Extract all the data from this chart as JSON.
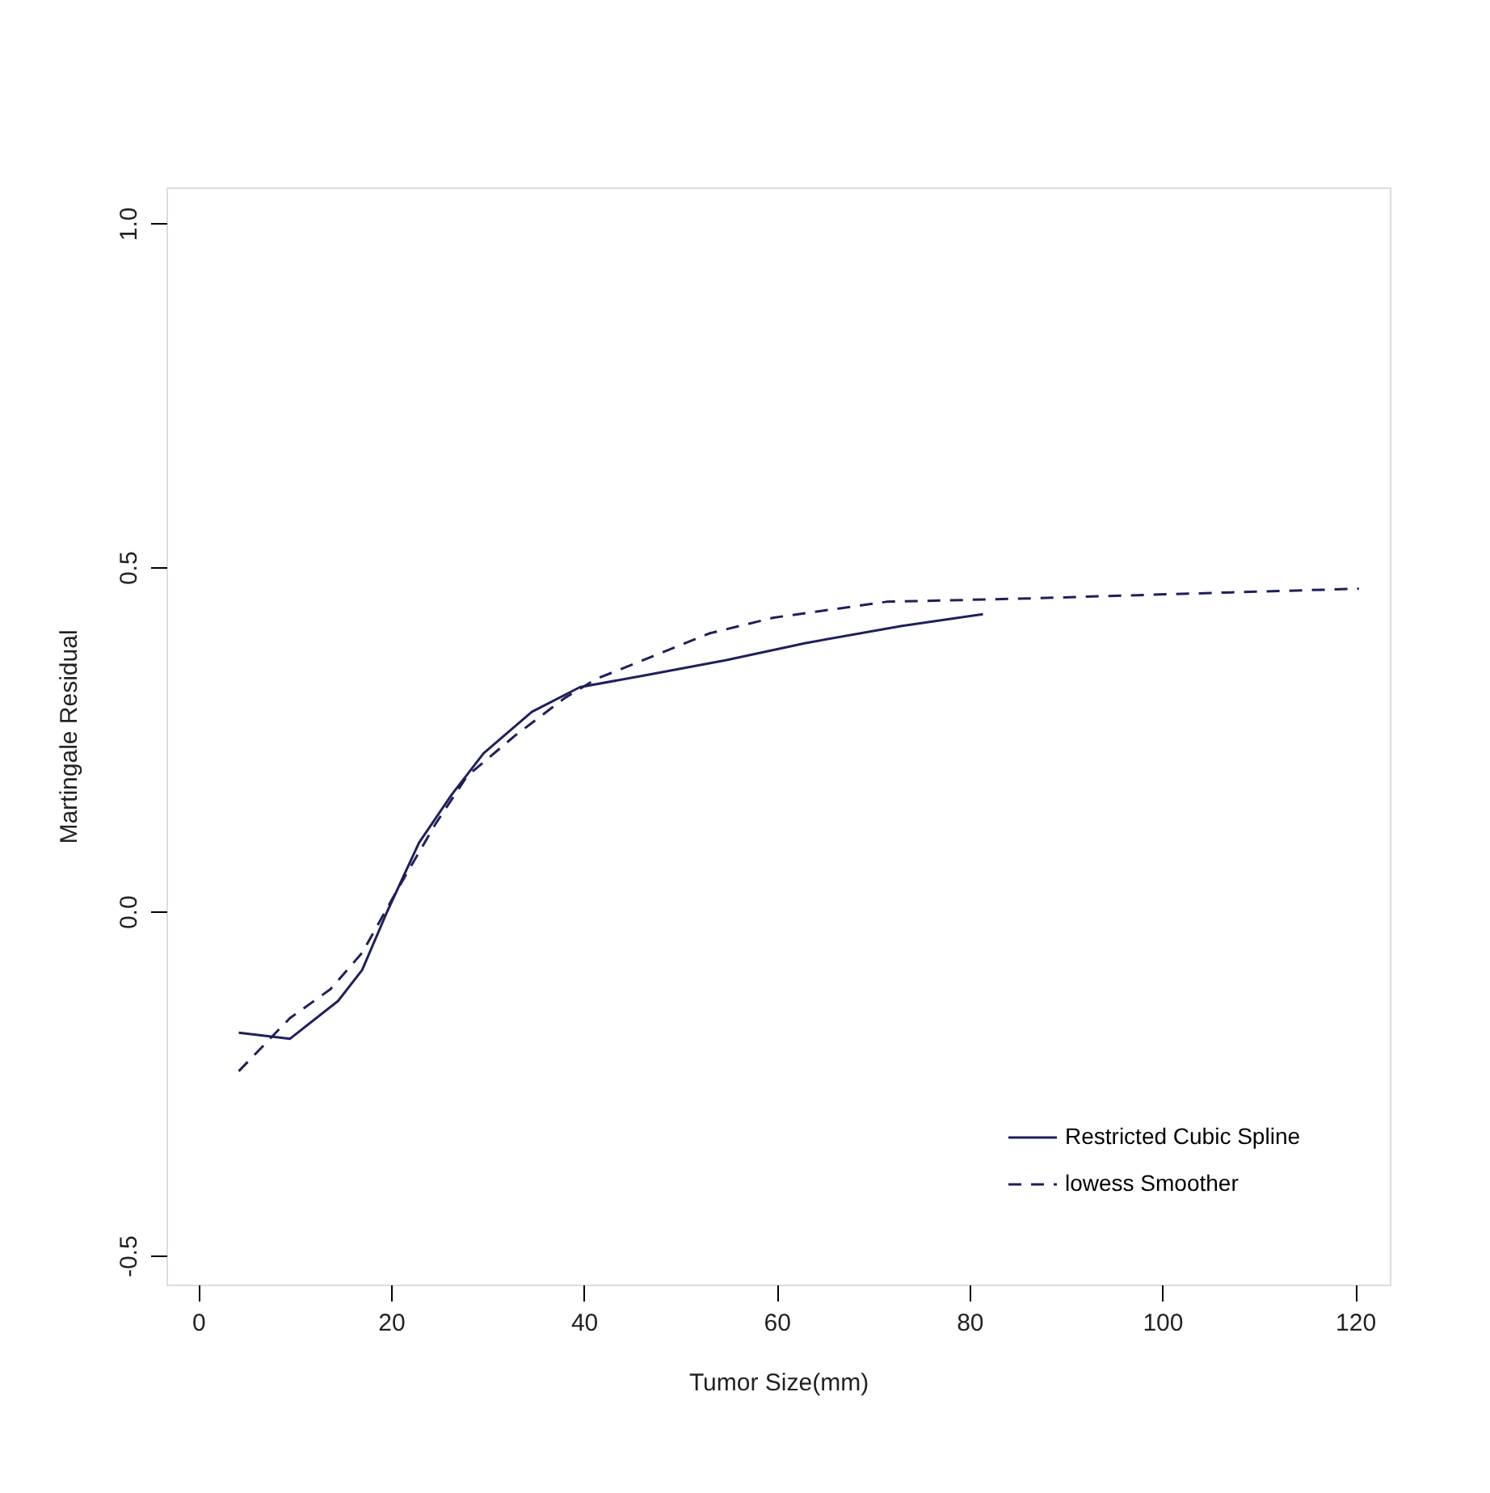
{
  "chart_data": {
    "type": "line",
    "xlabel": "Tumor Size(mm)",
    "ylabel": "Martingale Residual",
    "xlim": [
      -3.3,
      123.6
    ],
    "ylim": [
      -0.542,
      1.052
    ],
    "xticks": [
      0,
      20,
      40,
      60,
      80,
      100,
      120
    ],
    "yticks": [
      {
        "value": -0.5,
        "label": "-0.5"
      },
      {
        "value": 0,
        "label": "0.0"
      },
      {
        "value": 0.5,
        "label": "0.5"
      },
      {
        "value": 1,
        "label": "1.0"
      }
    ],
    "grid": false,
    "legend": "bottom right",
    "marker": "none",
    "series": [
      {
        "name": "Restricted Cubic Spline",
        "color": "#1f1f5c",
        "line_style": "solid",
        "x": [
          4.2,
          9.5,
          14.5,
          17,
          19.6,
          22.9,
          26.3,
          29.6,
          34.6,
          39.6,
          46.3,
          54.7,
          63,
          73,
          81.4
        ],
        "values": [
          -0.176,
          -0.185,
          -0.13,
          -0.085,
          0,
          0.1,
          0.17,
          0.23,
          0.29,
          0.326,
          0.343,
          0.365,
          0.39,
          0.415,
          0.432
        ]
      },
      {
        "name": "lowess Smoother",
        "color": "#1f1f5c",
        "line_style": "dashed",
        "x": [
          4.2,
          9.5,
          13.7,
          17,
          21.2,
          24.6,
          27.9,
          32.9,
          38,
          41.3,
          46.3,
          53,
          59.7,
          71.4,
          86.5,
          103,
          120.4
        ],
        "values": [
          -0.232,
          -0.155,
          -0.113,
          -0.06,
          0.045,
          0.127,
          0.197,
          0.256,
          0.31,
          0.338,
          0.366,
          0.404,
          0.427,
          0.45,
          0.455,
          0.462,
          0.469
        ]
      }
    ]
  }
}
